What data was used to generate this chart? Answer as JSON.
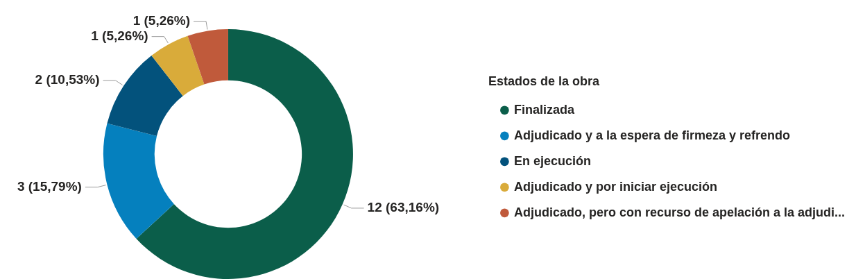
{
  "chart_data": {
    "type": "donut",
    "legend_title": "Estados de la obra",
    "legend": "right",
    "categories": [
      "Finalizada",
      "Adjudicado y a la espera de firmeza y refrendo",
      "En ejecución",
      "Adjudicado y por iniciar ejecución",
      "Adjudicado, pero con recurso de apelación a la adjudi..."
    ],
    "values": [
      12,
      3,
      2,
      1,
      1
    ],
    "colors": [
      "#0b5e4a",
      "#0580be",
      "#03527c",
      "#d9ab3a",
      "#c05a3b"
    ],
    "value_labels": [
      "12 (63,16%)",
      "3 (15,79%)",
      "2 (10,53%)",
      "1 (5,26%)",
      "1 (5,26%)"
    ]
  }
}
